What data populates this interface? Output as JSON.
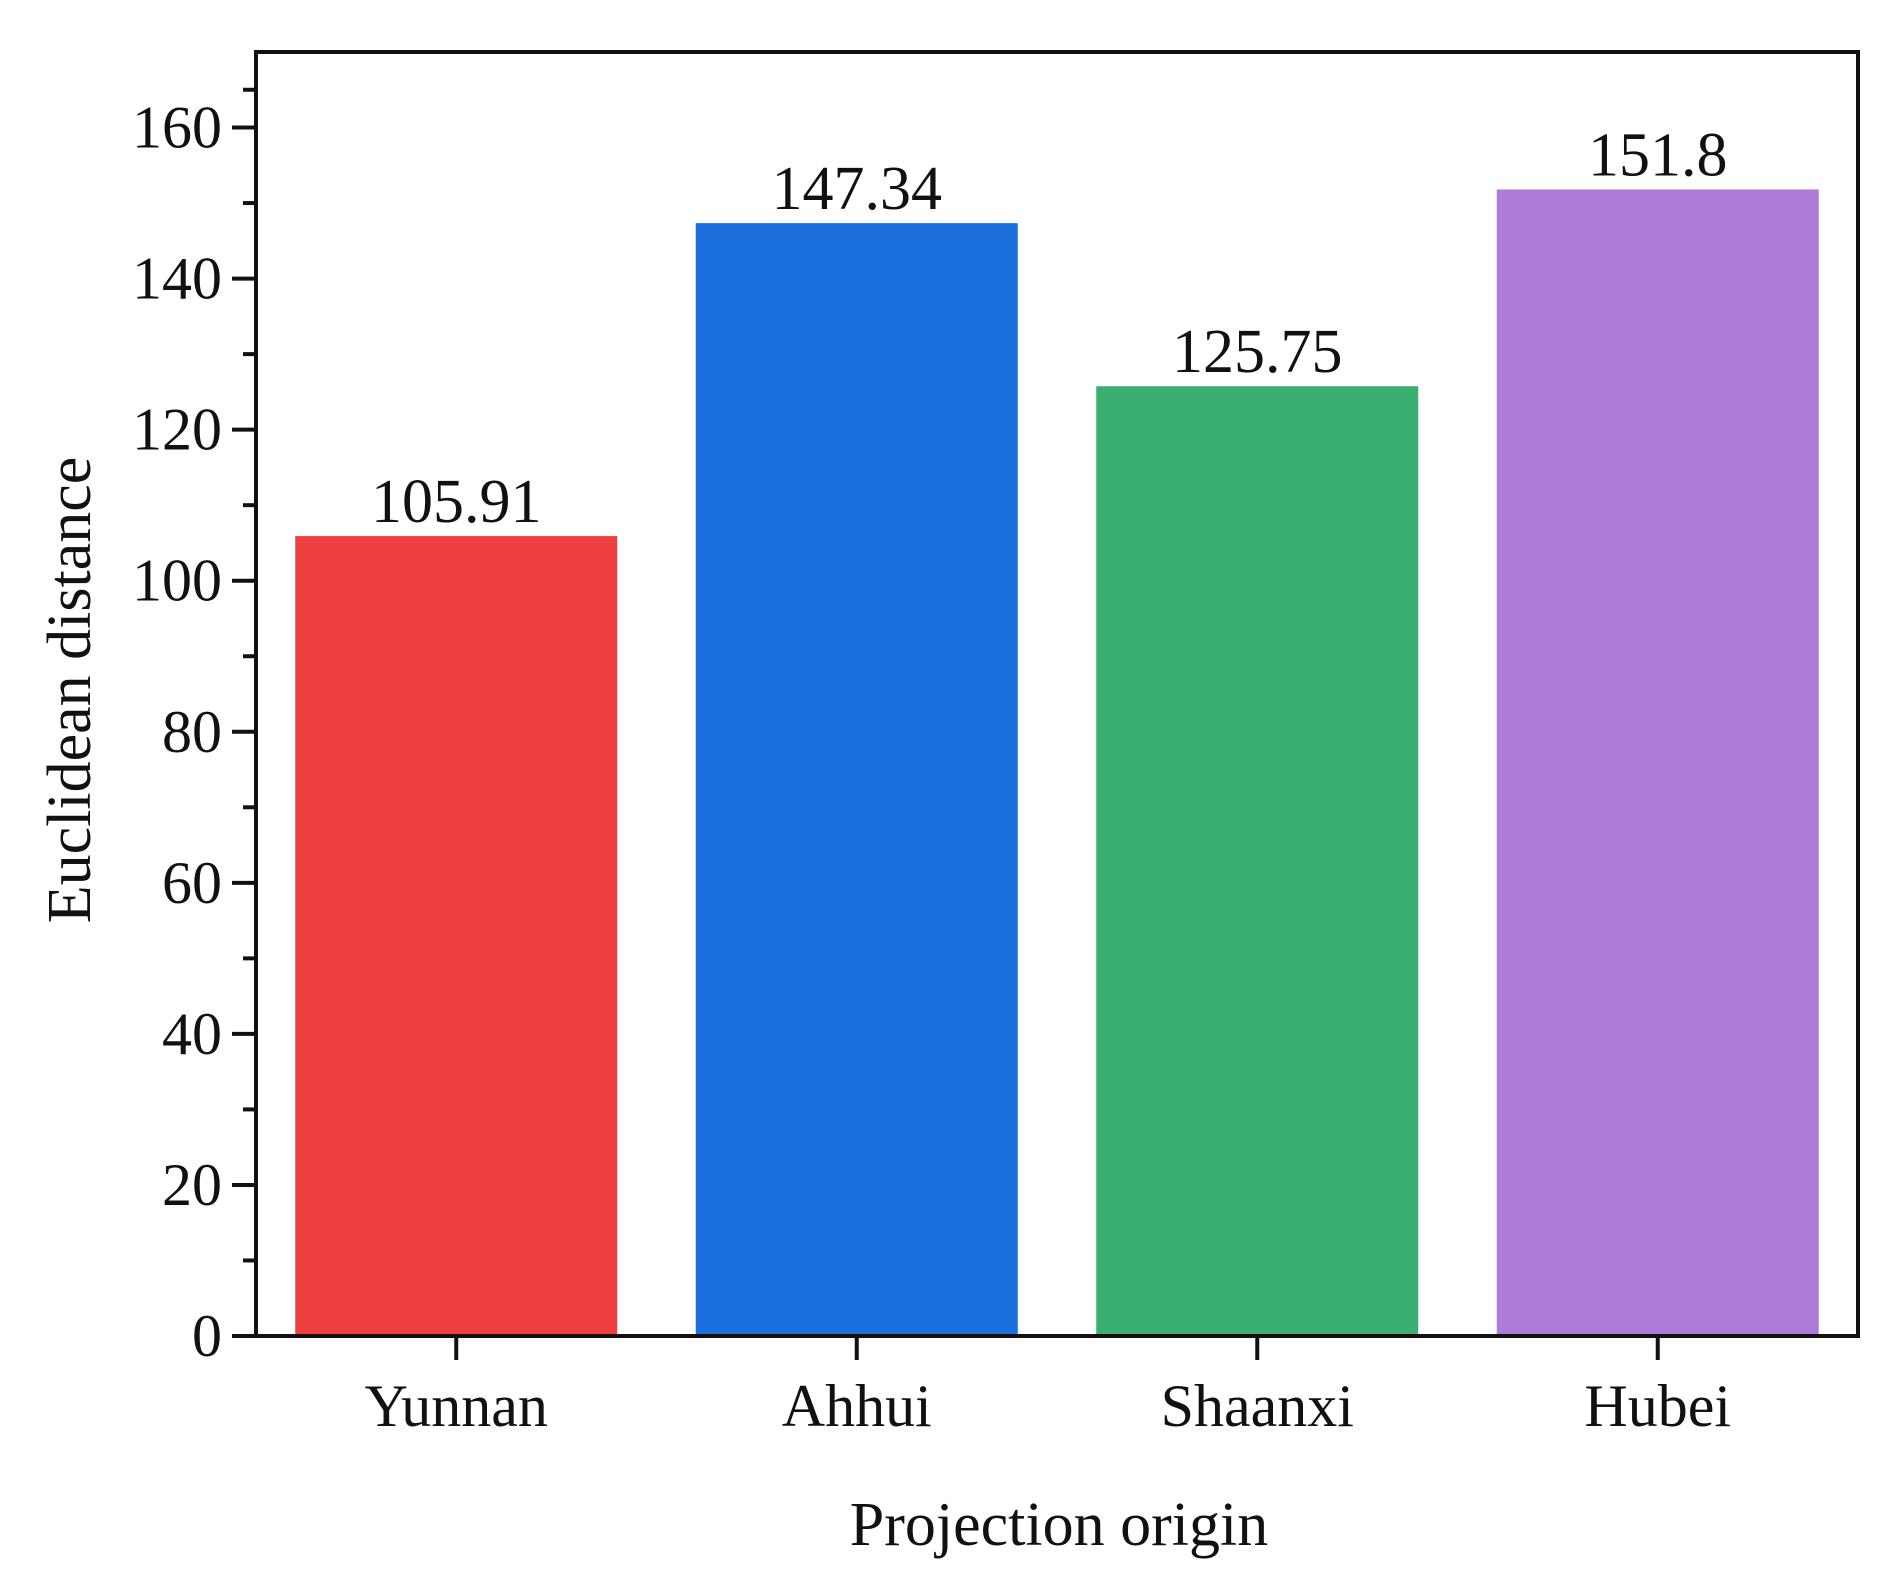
{
  "chart_data": {
    "type": "bar",
    "title": "",
    "xlabel": "Projection origin",
    "ylabel": "Euclidean distance",
    "categories": [
      "Yunnan",
      "Ahhui",
      "Shaanxi",
      "Hubei"
    ],
    "values": [
      105.91,
      147.34,
      125.75,
      151.8
    ],
    "value_labels": [
      "105.91",
      "147.34",
      "125.75",
      "151.8"
    ],
    "colors": [
      "#ef4040",
      "#1b6fdd",
      "#3aaf6f",
      "#b07ad9"
    ],
    "ylim": [
      0,
      170
    ],
    "yticks": [
      0,
      20,
      40,
      60,
      80,
      100,
      120,
      140,
      160
    ],
    "ytick_labels": [
      "0",
      "20",
      "40",
      "60",
      "80",
      "100",
      "120",
      "140",
      "160"
    ],
    "grid": false,
    "legend": "none"
  }
}
